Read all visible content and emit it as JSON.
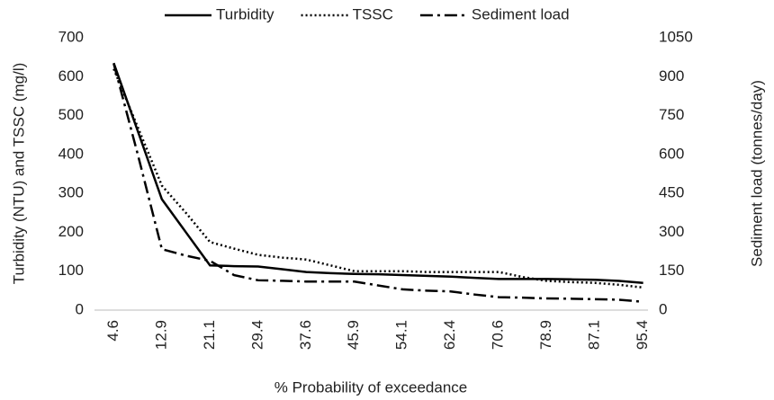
{
  "chart_data": {
    "type": "line",
    "x_label": "% Probability of exceedance",
    "y_label": "Turbidity (NTU) and TSSC (mg/l)",
    "y2_label": "Sediment load (tonnes/day)",
    "categories": [
      "4.6",
      null,
      "12.9",
      null,
      "21.1",
      null,
      "29.4",
      null,
      "37.6",
      null,
      "45.9",
      null,
      "54.1",
      null,
      "62.4",
      null,
      "70.6",
      null,
      "78.9",
      null,
      "87.1",
      null,
      "95.4"
    ],
    "series": [
      {
        "name": "Turbidity",
        "color": "#000000",
        "line_style": "solid",
        "values": [
          635,
          460,
          285,
          200,
          115,
          113,
          112,
          105,
          98,
          95,
          93,
          92,
          90,
          88,
          86,
          83,
          80,
          80,
          80,
          79,
          78,
          75,
          70
        ]
      },
      {
        "name": "TSSC",
        "color": "#000000",
        "line_style": "dotted",
        "values": [
          620,
          470,
          320,
          250,
          175,
          158,
          142,
          135,
          130,
          115,
          100,
          100,
          100,
          98,
          98,
          98,
          98,
          85,
          75,
          72,
          70,
          65,
          58
        ]
      },
      {
        "name": "Sediment load",
        "color": "#000000",
        "line_style": "dashdot",
        "axis": "y2",
        "values": [
          950,
          600,
          235,
          210,
          190,
          135,
          115,
          113,
          110,
          110,
          110,
          95,
          80,
          75,
          72,
          60,
          50,
          48,
          45,
          44,
          42,
          40,
          32
        ]
      }
    ],
    "ylim": [
      0,
      700
    ],
    "yticks": [
      0,
      100,
      200,
      300,
      400,
      500,
      600,
      700
    ],
    "y2lim": [
      0,
      1050
    ],
    "y2ticks": [
      0,
      150,
      300,
      450,
      600,
      750,
      900,
      1050
    ],
    "legend": "top",
    "grid": false
  }
}
